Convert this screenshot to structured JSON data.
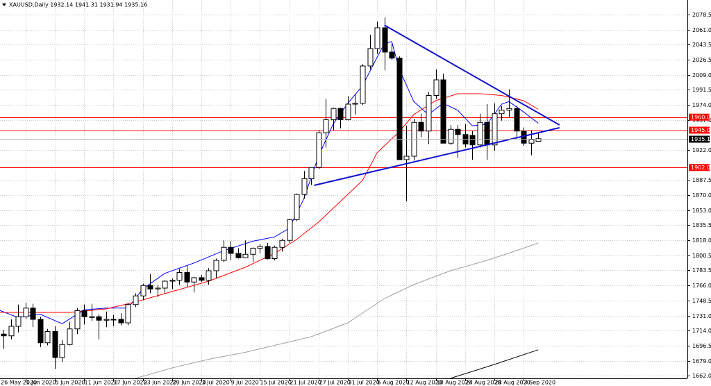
{
  "chart_data": {
    "type": "candlestick",
    "title": "XAUUSD,Daily  1932.14 1941.31 1931.94 1935.16",
    "categories": [
      "26 May 2020",
      null,
      null,
      null,
      "1 Jun 2020",
      null,
      null,
      null,
      "5 Jun 2020",
      null,
      null,
      null,
      "11 Jun 2020",
      null,
      null,
      null,
      "17 Jun 2020",
      null,
      null,
      null,
      "23 Jun 2020",
      null,
      null,
      null,
      "29 Jun 2020",
      null,
      null,
      null,
      "3 Jul 2020",
      null,
      null,
      null,
      "9 Jul 2020",
      null,
      null,
      null,
      "15 Jul 2020",
      null,
      null,
      null,
      "21 Jul 2020",
      null,
      null,
      null,
      "27 Jul 2020",
      null,
      null,
      null,
      "31 Jul 2020",
      null,
      null,
      null,
      "6 Aug 2020",
      null,
      null,
      null,
      "12 Aug 2020",
      null,
      null,
      null,
      "18 Aug 2020",
      null,
      null,
      null,
      "24 Aug 2020",
      null,
      null,
      null,
      "28 Aug 2020",
      null,
      null,
      null,
      "3 Sep 2020",
      null,
      null
    ],
    "open": [
      1729,
      1710,
      1708,
      1719,
      1730,
      1740,
      1727,
      1700,
      1713,
      1683,
      1698,
      1716,
      1737,
      1730,
      1730,
      1726,
      1727,
      1727,
      1723,
      1744,
      1754,
      1766,
      1762,
      1763,
      1771,
      1772,
      1781,
      1770,
      1775,
      1772,
      1783,
      1795,
      1810,
      1803,
      1798,
      1802,
      1809,
      1811,
      1797,
      1810,
      1818,
      1842,
      1871,
      1889,
      1902,
      1942,
      1957,
      1970,
      1957,
      1975,
      1976,
      2019,
      2039,
      2063,
      2035,
      2028,
      1911,
      1915,
      1954,
      1944,
      1985,
      2003,
      1930,
      1946,
      1940,
      1939,
      1928,
      1954,
      1928,
      1964,
      1968,
      1970,
      1944,
      1930,
      1932.14
    ],
    "high": [
      1735,
      1715,
      1727,
      1744,
      1746,
      1745,
      1730,
      1716,
      1719,
      1703,
      1724,
      1740,
      1744,
      1745,
      1733,
      1736,
      1732,
      1734,
      1745,
      1757,
      1768,
      1779,
      1767,
      1772,
      1774,
      1785,
      1789,
      1776,
      1778,
      1786,
      1797,
      1818,
      1817,
      1809,
      1818,
      1810,
      1814,
      1815,
      1812,
      1820,
      1843,
      1872,
      1898,
      1902,
      1945,
      1981,
      1971,
      1971,
      1984,
      1987,
      2021,
      2055,
      2070,
      2075,
      2045,
      2030,
      1950,
      1958,
      1964,
      1989,
      2015,
      2010,
      1951,
      1951,
      1952,
      1944,
      1964,
      1975,
      1976,
      1973,
      1992,
      1973,
      1948,
      1945,
      1941.31
    ],
    "low": [
      1700,
      1693,
      1704,
      1712,
      1727,
      1718,
      1695,
      1697,
      1670,
      1678,
      1697,
      1710,
      1721,
      1725,
      1704,
      1718,
      1719,
      1720,
      1720,
      1741,
      1749,
      1757,
      1753,
      1757,
      1762,
      1767,
      1764,
      1758,
      1770,
      1767,
      1774,
      1793,
      1795,
      1797,
      1798,
      1793,
      1803,
      1796,
      1795,
      1805,
      1815,
      1840,
      1866,
      1882,
      1900,
      1925,
      1945,
      1947,
      1956,
      1963,
      1974,
      2015,
      2033,
      2014,
      2026,
      1911,
      1863,
      1910,
      1937,
      1929,
      1981,
      1930,
      1928,
      1913,
      1925,
      1911,
      1925,
      1911,
      1921,
      1956,
      1960,
      1937,
      1927,
      1916,
      1931.94
    ],
    "close": [
      1710,
      1708,
      1719,
      1730,
      1740,
      1727,
      1700,
      1713,
      1683,
      1698,
      1716,
      1737,
      1730,
      1730,
      1726,
      1727,
      1727,
      1723,
      1744,
      1754,
      1766,
      1762,
      1763,
      1771,
      1772,
      1781,
      1770,
      1775,
      1772,
      1783,
      1795,
      1810,
      1803,
      1798,
      1802,
      1809,
      1811,
      1797,
      1810,
      1818,
      1842,
      1871,
      1889,
      1902,
      1942,
      1957,
      1970,
      1957,
      1975,
      1976,
      2019,
      2039,
      2063,
      2035,
      2028,
      1911,
      1915,
      1954,
      1944,
      1985,
      2003,
      1930,
      1946,
      1940,
      1929,
      1928,
      1954,
      1928,
      1964,
      1968,
      1970,
      1944,
      1930,
      1934,
      1935.16
    ],
    "lines": [
      {
        "color": "#0000ff",
        "x": [
          0,
          3,
          6,
          9,
          12,
          15,
          18,
          20,
          23,
          27,
          31,
          35,
          38,
          40,
          42,
          44,
          46,
          48,
          50,
          52,
          53,
          54,
          55,
          57,
          59,
          61,
          63,
          65,
          67,
          69,
          70,
          72,
          74
        ],
        "values": [
          1739,
          1729,
          1733,
          1722,
          1738,
          1740,
          1740,
          1762,
          1780,
          1792,
          1806,
          1817,
          1822,
          1832,
          1866,
          1915,
          1952,
          1976,
          1996,
          2029,
          2045,
          2047,
          2016,
          1978,
          1963,
          1976,
          1968,
          1950,
          1952,
          1975,
          1978,
          1966,
          1953
        ]
      },
      {
        "color": "#ff0000",
        "x": [
          0,
          6,
          10,
          15,
          19,
          24,
          29,
          34,
          38,
          41,
          44,
          47,
          50,
          52,
          55,
          57,
          60,
          63,
          66,
          69,
          72,
          74
        ],
        "values": [
          1735,
          1735,
          1735,
          1739,
          1747,
          1759,
          1771,
          1787,
          1803,
          1819,
          1839,
          1863,
          1887,
          1919,
          1943,
          1963,
          1979,
          1987,
          1987,
          1985,
          1979,
          1969
        ]
      },
      {
        "color": "#a0a0a0",
        "x": [
          19,
          24,
          29,
          34,
          38,
          43,
          48,
          53,
          57,
          62,
          67,
          72,
          74
        ],
        "values": [
          1659,
          1671,
          1681,
          1689,
          1697,
          1707,
          1723,
          1751,
          1767,
          1783,
          1795,
          1809,
          1815
        ]
      },
      {
        "color": "#000000",
        "x": [
          62,
          68,
          74
        ],
        "values": [
          1659,
          1675,
          1692
        ]
      }
    ],
    "trendlines": [
      {
        "color": "#1010d0",
        "x": [
          53,
          76.9
        ],
        "values": [
          2066,
          1951
        ]
      },
      {
        "color": "#1010d0",
        "x": [
          43.4,
          76.9
        ],
        "values": [
          1881.4,
          1947.8
        ]
      }
    ],
    "levels": [
      {
        "value": 1960,
        "label": "1960.00",
        "color": "#ff0000"
      },
      {
        "value": 1945,
        "label": "1945.00",
        "color": "#ff0000"
      },
      {
        "value": 1902,
        "label": "1902.00",
        "color": "#ff0000"
      }
    ],
    "last_price": 1935.16,
    "ylim": [
      1659,
      2095
    ],
    "yticks": [
      {
        "value": 2078.5,
        "label": "2078.50"
      },
      {
        "value": 2061,
        "label": "2061.00"
      },
      {
        "value": 2043.5,
        "label": "2043.50"
      },
      {
        "value": 2026.5,
        "label": "2026.50"
      },
      {
        "value": 2009,
        "label": "2009.00"
      },
      {
        "value": 1991.5,
        "label": "1991.50"
      },
      {
        "value": 1974,
        "label": "1974.00"
      },
      {
        "value": 1957,
        "label": "1957.00"
      },
      {
        "value": 1922,
        "label": "1922.00"
      },
      {
        "value": 1887.5,
        "label": "1887.50"
      },
      {
        "value": 1870,
        "label": "1870.00"
      },
      {
        "value": 1853,
        "label": "1853.00"
      },
      {
        "value": 1835.5,
        "label": "1835.50"
      },
      {
        "value": 1818,
        "label": "1818.00"
      },
      {
        "value": 1800.5,
        "label": "1800.50"
      },
      {
        "value": 1783.5,
        "label": "1783.50"
      },
      {
        "value": 1766,
        "label": "1766.00"
      },
      {
        "value": 1748.5,
        "label": "1748.50"
      },
      {
        "value": 1731,
        "label": "1731.00"
      },
      {
        "value": 1714,
        "label": "1714.00"
      },
      {
        "value": 1696.5,
        "label": "1696.50"
      },
      {
        "value": 1679,
        "label": "1679.00"
      },
      {
        "value": 1662,
        "label": "1662.00"
      }
    ],
    "grid": true
  }
}
